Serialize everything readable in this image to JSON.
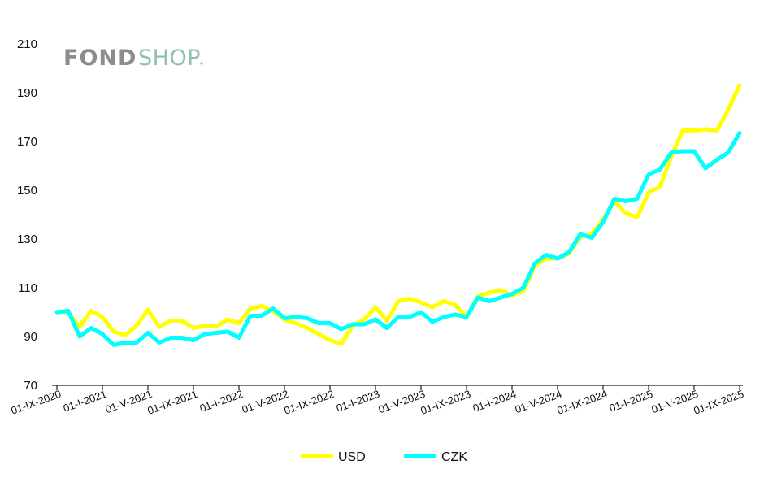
{
  "logo": {
    "part1": "FOND",
    "part2": "SHOP",
    "part1_color": "#8c8c8c",
    "part2_color": "#8fc2ad"
  },
  "chart_data": {
    "type": "line",
    "ylim": [
      70,
      210
    ],
    "yticks": [
      70,
      90,
      110,
      130,
      150,
      170,
      190,
      210
    ],
    "x_tick_labels": [
      "01-IX-2020",
      "01-I-2021",
      "01-V-2021",
      "01-IX-2021",
      "01-I-2022",
      "01-V-2022",
      "01-IX-2022",
      "01-I-2023",
      "01-V-2023",
      "01-IX-2023",
      "01-I-2024",
      "01-V-2024",
      "01-IX-2024",
      "01-I-2025",
      "01-V-2025",
      "01-IX-2025"
    ],
    "x_tick_indices": [
      0,
      4,
      8,
      12,
      16,
      20,
      24,
      28,
      32,
      36,
      40,
      44,
      48,
      52,
      56,
      60
    ],
    "grid": false,
    "legend_position": "bottom",
    "series": [
      {
        "name": "USD",
        "color": "#ffff00",
        "values": [
          100,
          100,
          94,
          100.5,
          98,
          92,
          90.5,
          94.5,
          101,
          94,
          96.5,
          96.5,
          93.5,
          94.5,
          94,
          97,
          95.5,
          101.5,
          102.5,
          100.5,
          97,
          95.5,
          93.5,
          91,
          88.5,
          87,
          94.5,
          97,
          102,
          96.5,
          104.5,
          105.5,
          104,
          102,
          104.5,
          103,
          98,
          106.5,
          108,
          109,
          107,
          108.5,
          119,
          122,
          122,
          124,
          131,
          132,
          138,
          145.5,
          140.5,
          139,
          149,
          151.5,
          164,
          174.5,
          174.5,
          175,
          174.5,
          183,
          193
        ]
      },
      {
        "name": "CZK",
        "color": "#00ffff",
        "values": [
          100,
          100.5,
          90,
          93.5,
          91,
          86.5,
          87.5,
          87.5,
          91.5,
          87.5,
          89.5,
          89.5,
          88.5,
          91,
          91.5,
          92,
          89.5,
          98.5,
          98.5,
          101.5,
          97.5,
          98,
          97.5,
          95.5,
          95.5,
          93,
          95,
          95,
          97,
          93.5,
          98,
          98,
          100,
          96,
          98,
          99,
          98,
          106,
          104.5,
          106,
          107.5,
          110,
          120,
          123.5,
          122,
          124.5,
          132,
          130.5,
          137,
          146.5,
          145.5,
          146.5,
          156.5,
          158.5,
          165.5,
          166,
          166,
          159,
          162.5,
          165.5,
          173.5
        ]
      }
    ]
  }
}
